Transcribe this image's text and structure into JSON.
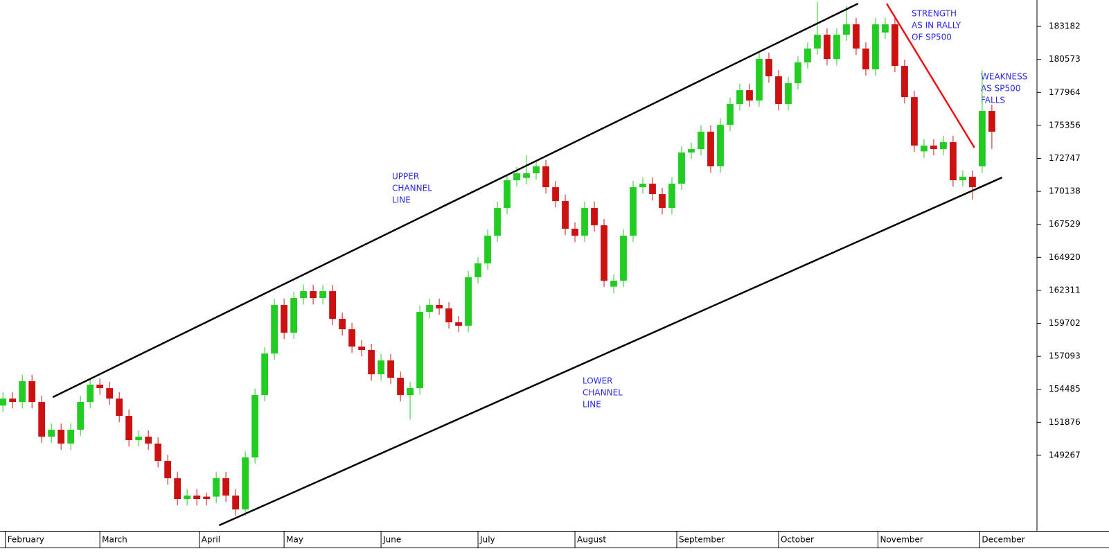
{
  "chart_data": {
    "type": "candlestick",
    "up_color": "#22cc22",
    "down_color": "#cc1111",
    "xlim": [
      -0.6,
      213.3
    ],
    "xticks": [
      {
        "value": 0.5,
        "label": "February"
      },
      {
        "value": 20,
        "label": "March"
      },
      {
        "value": 40.5,
        "label": "April"
      },
      {
        "value": 58,
        "label": "May"
      },
      {
        "value": 78,
        "label": "June"
      },
      {
        "value": 98,
        "label": "July"
      },
      {
        "value": 118,
        "label": "August"
      },
      {
        "value": 139,
        "label": "September"
      },
      {
        "value": 160,
        "label": "October"
      },
      {
        "value": 180.5,
        "label": "November"
      },
      {
        "value": 201.5,
        "label": "December"
      }
    ],
    "ylim": [
      143290,
      185270
    ],
    "yticks": [
      149267,
      151876,
      154485,
      157093,
      159702,
      162311,
      164920,
      167529,
      170138,
      172747,
      175356,
      177964,
      180573,
      183182
    ],
    "x": [
      0,
      2,
      4,
      6,
      8,
      10,
      12,
      14,
      16,
      18,
      20,
      22,
      24,
      26,
      28,
      30,
      32,
      34,
      36,
      38,
      40,
      42,
      44,
      46,
      48,
      50,
      52,
      54,
      56,
      58,
      60,
      62,
      64,
      66,
      68,
      70,
      72,
      74,
      76,
      78,
      80,
      82,
      84,
      86,
      88,
      90,
      92,
      94,
      96,
      98,
      100,
      102,
      104,
      106,
      108,
      110,
      112,
      114,
      116,
      118,
      120,
      122,
      124,
      126,
      128,
      130,
      132,
      134,
      136,
      138,
      140,
      142,
      144,
      146,
      148,
      150,
      152,
      154,
      156,
      158,
      160,
      162,
      164,
      166,
      168,
      170,
      172,
      174,
      176,
      178,
      180,
      182,
      184,
      186,
      188,
      190,
      192,
      194,
      196,
      198,
      200,
      202,
      204
    ],
    "open": [
      153200,
      153755,
      153481,
      155125,
      153481,
      150741,
      151289,
      150193,
      151289,
      153481,
      154851,
      154577,
      153755,
      152385,
      150467,
      150741,
      150193,
      148823,
      147453,
      145809,
      146083,
      146000,
      146000,
      147453,
      146083,
      144987,
      149097,
      154029,
      157317,
      161153,
      158961,
      161701,
      162249,
      161701,
      162249,
      160057,
      159235,
      157865,
      157591,
      155673,
      156769,
      155399,
      154029,
      154577,
      160605,
      161153,
      160879,
      159783,
      159509,
      163345,
      164441,
      166633,
      168825,
      171017,
      171200,
      171565,
      172113,
      170469,
      169373,
      167181,
      166633,
      168825,
      167455,
      162600,
      163071,
      166633,
      170469,
      170743,
      169921,
      168825,
      170743,
      173209,
      173483,
      174853,
      172113,
      175401,
      177045,
      178141,
      177319,
      180607,
      179237,
      177045,
      178689,
      180333,
      181429,
      182525,
      180607,
      182525,
      183347,
      181429,
      179785,
      182700,
      183347,
      180059,
      177593,
      173300,
      173757,
      173483,
      174031,
      171017,
      171291,
      172113,
      176497
    ],
    "high": [
      154255,
      154255,
      155625,
      155625,
      153981,
      151789,
      151789,
      151789,
      153981,
      155351,
      155351,
      155077,
      154255,
      152885,
      151241,
      151241,
      150693,
      149323,
      147953,
      146583,
      146583,
      146309,
      147953,
      147953,
      146583,
      149597,
      154529,
      157817,
      161653,
      161653,
      162201,
      162749,
      162749,
      162749,
      162749,
      160557,
      159735,
      158365,
      158091,
      157269,
      157269,
      155899,
      155077,
      161105,
      161653,
      161653,
      161379,
      160283,
      163845,
      164941,
      167133,
      169325,
      171517,
      172065,
      173000,
      172613,
      172613,
      170969,
      169873,
      167681,
      169325,
      169325,
      167955,
      163571,
      167133,
      170969,
      171243,
      171243,
      170421,
      171243,
      173709,
      173983,
      175353,
      175353,
      175901,
      177545,
      178641,
      178641,
      181107,
      181107,
      179737,
      179189,
      180833,
      181929,
      185100,
      183025,
      183025,
      184800,
      183847,
      181929,
      183847,
      183847,
      183847,
      180559,
      178093,
      174257,
      174257,
      174531,
      174531,
      171791,
      171791,
      179700,
      176997
    ],
    "low": [
      152700,
      152981,
      152981,
      152981,
      150241,
      150241,
      149693,
      149693,
      150789,
      152981,
      154077,
      153255,
      151885,
      149967,
      149967,
      149693,
      148323,
      146953,
      145309,
      145309,
      145309,
      145309,
      145500,
      145583,
      144487,
      144487,
      148597,
      153529,
      156817,
      158461,
      158461,
      161201,
      161201,
      161201,
      159557,
      158735,
      157365,
      157091,
      155173,
      155173,
      154899,
      153529,
      152100,
      154077,
      160105,
      160379,
      159283,
      159009,
      159009,
      162845,
      163941,
      166133,
      168325,
      170517,
      170700,
      171065,
      169969,
      168873,
      166681,
      166133,
      166133,
      166955,
      162571,
      162100,
      162571,
      166133,
      169969,
      169421,
      168325,
      168325,
      170243,
      172709,
      172983,
      171613,
      171613,
      174901,
      176545,
      176819,
      176819,
      178737,
      176545,
      176545,
      178189,
      179833,
      180929,
      180107,
      180107,
      182025,
      180929,
      179285,
      179285,
      182200,
      179559,
      177093,
      173257,
      172800,
      172983,
      172983,
      170517,
      170517,
      169500,
      171600,
      173500
    ],
    "close": [
      153755,
      153481,
      155125,
      153481,
      150741,
      151289,
      150193,
      151289,
      153481,
      154851,
      154577,
      153755,
      152385,
      150467,
      150741,
      150193,
      148823,
      147453,
      145809,
      146083,
      145809,
      145809,
      147453,
      146083,
      144987,
      149097,
      154029,
      157317,
      161153,
      158961,
      161701,
      162249,
      161701,
      162249,
      160057,
      159235,
      157865,
      157591,
      155673,
      156769,
      155399,
      154029,
      154577,
      160605,
      161153,
      160879,
      159783,
      159509,
      163345,
      164441,
      166633,
      168825,
      171017,
      171565,
      171565,
      172113,
      170469,
      169373,
      167181,
      166633,
      168825,
      167455,
      163071,
      163071,
      166633,
      170469,
      170743,
      169921,
      168825,
      170743,
      173209,
      173483,
      174853,
      172113,
      175401,
      177045,
      178141,
      177319,
      180607,
      179237,
      177045,
      178689,
      180333,
      181429,
      182525,
      180607,
      182525,
      183347,
      181429,
      179785,
      183347,
      183347,
      180059,
      177593,
      173757,
      173757,
      173483,
      174031,
      171017,
      171291,
      170469,
      176497,
      174853
    ],
    "lines": [
      {
        "color": "#000000",
        "x": [
          10.3,
          176.4
        ],
        "y": [
          153865,
          184991
        ]
      },
      {
        "color": "#000000",
        "x": [
          44.6,
          206.1
        ],
        "y": [
          143727,
          171236
        ]
      },
      {
        "color": "#ee1111",
        "x": [
          182.3,
          200.4
        ],
        "y": [
          184991,
          173593
        ]
      }
    ],
    "annotations": [
      [
        "UPPER",
        "CHANNEL",
        "LINE"
      ],
      [
        "LOWER",
        "CHANNEL",
        "LINE"
      ],
      [
        "STRENGTH",
        "AS IN RALLY",
        "OF SP500"
      ],
      [
        "WEAKNESS",
        "AS SP500",
        "FALLS"
      ]
    ]
  }
}
